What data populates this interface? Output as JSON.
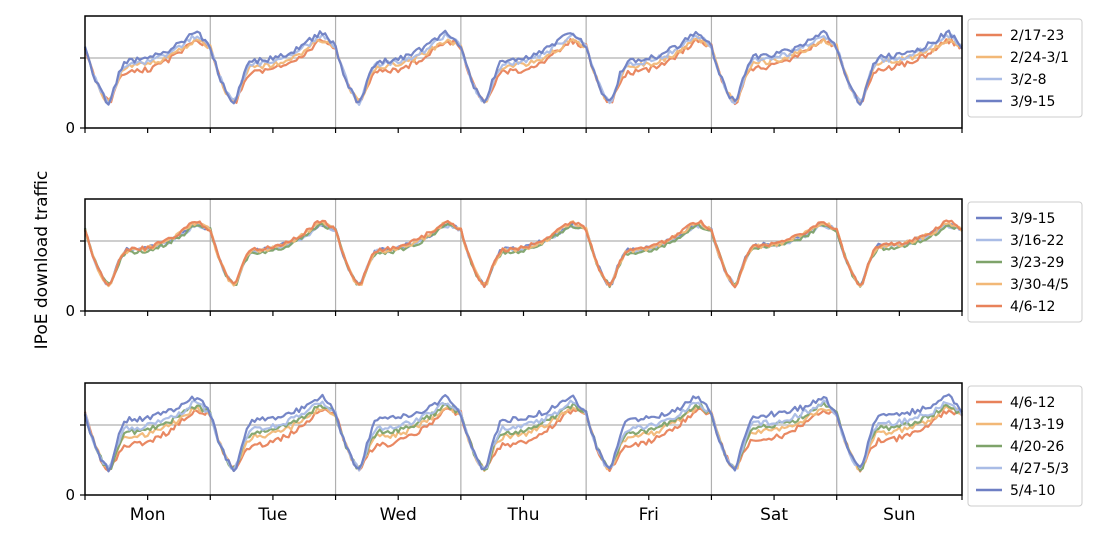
{
  "chart_data": {
    "type": "line",
    "ylabel": "IPoE download traffic",
    "x_labels": [
      "Mon",
      "Tue",
      "Wed",
      "Thu",
      "Fri",
      "Sat",
      "Sun"
    ],
    "y_tick_label": "0",
    "grid": true,
    "legend_placement": "right",
    "panels": [
      {
        "series": [
          {
            "name": "2/17-23",
            "color": "#e8825a",
            "peak": 0.62,
            "day_level": 0.4,
            "wobble": 0.02
          },
          {
            "name": "2/24-3/1",
            "color": "#f2b877",
            "peak": 0.63,
            "day_level": 0.44,
            "wobble": 0.02
          },
          {
            "name": "3/2-8",
            "color": "#a9bce6",
            "peak": 0.66,
            "day_level": 0.46,
            "wobble": 0.02
          },
          {
            "name": "3/9-15",
            "color": "#6e7fc4",
            "peak": 0.68,
            "day_level": 0.48,
            "wobble": 0.02
          }
        ]
      },
      {
        "series": [
          {
            "name": "3/9-15",
            "color": "#6e7fc4",
            "peak": 0.62,
            "day_level": 0.44,
            "wobble": 0.015
          },
          {
            "name": "3/16-22",
            "color": "#a9bce6",
            "peak": 0.61,
            "day_level": 0.43,
            "wobble": 0.015
          },
          {
            "name": "3/23-29",
            "color": "#7ea36a",
            "peak": 0.61,
            "day_level": 0.42,
            "wobble": 0.015
          },
          {
            "name": "3/30-4/5",
            "color": "#f2b877",
            "peak": 0.63,
            "day_level": 0.43,
            "wobble": 0.015
          },
          {
            "name": "4/6-12",
            "color": "#e8825a",
            "peak": 0.64,
            "day_level": 0.44,
            "wobble": 0.015
          }
        ]
      },
      {
        "series": [
          {
            "name": "4/6-12",
            "color": "#e8825a",
            "peak": 0.6,
            "day_level": 0.36,
            "wobble": 0.02
          },
          {
            "name": "4/13-19",
            "color": "#f2b877",
            "peak": 0.62,
            "day_level": 0.42,
            "wobble": 0.02
          },
          {
            "name": "4/20-26",
            "color": "#7ea36a",
            "peak": 0.64,
            "day_level": 0.45,
            "wobble": 0.02
          },
          {
            "name": "4/27-5/3",
            "color": "#a9bce6",
            "peak": 0.66,
            "day_level": 0.48,
            "wobble": 0.02
          },
          {
            "name": "5/4-10",
            "color": "#6e7fc4",
            "peak": 0.7,
            "day_level": 0.54,
            "wobble": 0.02
          }
        ]
      }
    ],
    "profile": {
      "points_per_day": 48,
      "trough_value": 0.18,
      "midnight_value": 0.58
    }
  }
}
